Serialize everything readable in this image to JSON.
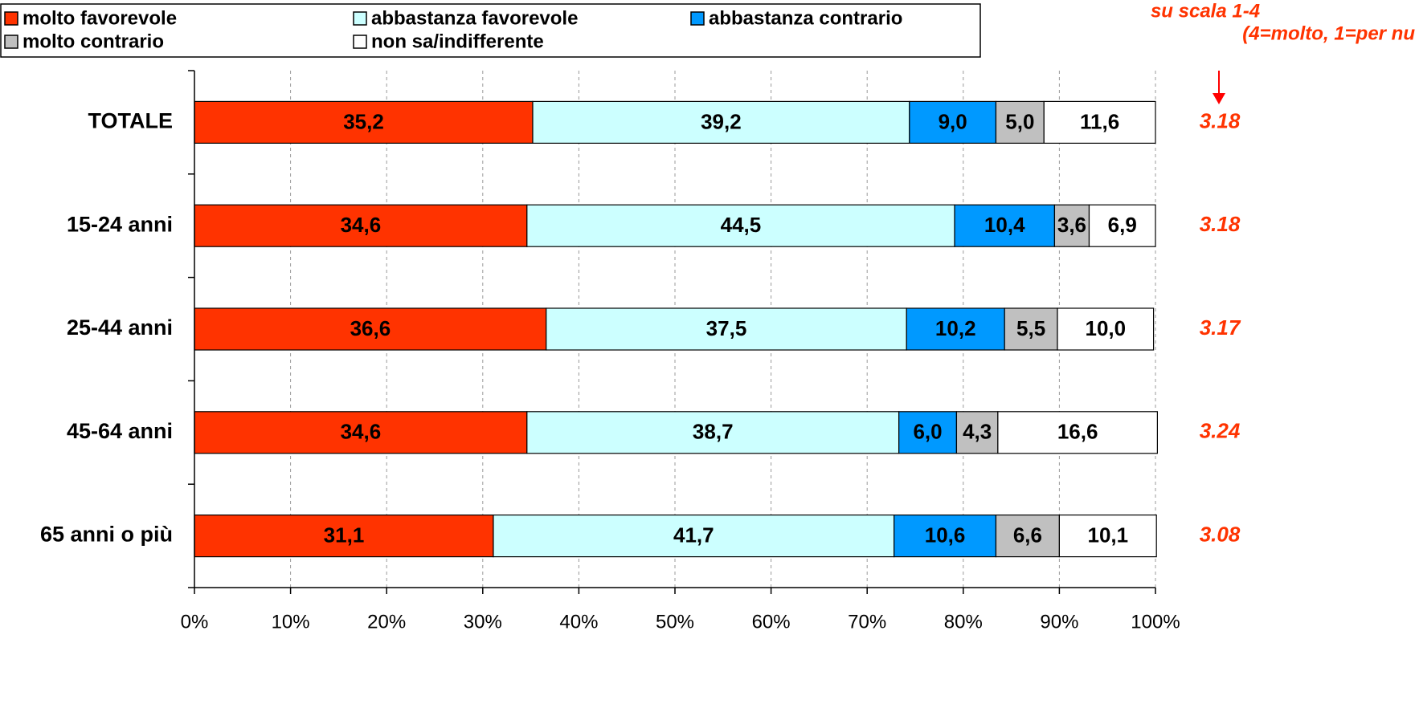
{
  "chart_data": {
    "type": "stacked-barh",
    "categories": [
      "TOTALE",
      "15-24 anni",
      "25-44 anni",
      "45-64 anni",
      "65 anni o più"
    ],
    "series": [
      {
        "name": "molto favorevole",
        "color": "#ff3300",
        "values": [
          35.2,
          34.6,
          36.6,
          34.6,
          31.1
        ],
        "value_labels": [
          "35,2",
          "34,6",
          "36,6",
          "34,6",
          "31,1"
        ]
      },
      {
        "name": "abbastanza favorevole",
        "color": "#ccffff",
        "values": [
          39.2,
          44.5,
          37.5,
          38.7,
          41.7
        ],
        "value_labels": [
          "39,2",
          "44,5",
          "37,5",
          "38,7",
          "41,7"
        ]
      },
      {
        "name": "abbastanza contrario",
        "color": "#0099ff",
        "values": [
          9.0,
          10.4,
          10.2,
          6.0,
          10.6
        ],
        "value_labels": [
          "9,0",
          "10,4",
          "10,2",
          "6,0",
          "10,6"
        ]
      },
      {
        "name": "molto contrario",
        "color": "#c0c0c0",
        "values": [
          5.0,
          3.6,
          5.5,
          4.3,
          6.6
        ],
        "value_labels": [
          "5,0",
          "3,6",
          "5,5",
          "4,3",
          "6,6"
        ]
      },
      {
        "name": "non sa/indifferente",
        "color": "#ffffff",
        "values": [
          11.6,
          6.9,
          10.0,
          16.6,
          10.1
        ],
        "value_labels": [
          "11,6",
          "6,9",
          "10,0",
          "16,6",
          "10,1"
        ]
      }
    ],
    "scores": [
      3.18,
      3.18,
      3.17,
      3.24,
      3.08
    ],
    "annotation": [
      "su scala 1-4",
      "(4=molto, 1=per nu"
    ],
    "xlim": [
      0,
      100
    ],
    "xticks": [
      {
        "value": 0,
        "label": "0%"
      },
      {
        "value": 10,
        "label": "10%"
      },
      {
        "value": 20,
        "label": "20%"
      },
      {
        "value": 30,
        "label": "30%"
      },
      {
        "value": 40,
        "label": "40%"
      },
      {
        "value": 50,
        "label": "50%"
      },
      {
        "value": 60,
        "label": "60%"
      },
      {
        "value": 70,
        "label": "70%"
      },
      {
        "value": 80,
        "label": "80%"
      },
      {
        "value": 90,
        "label": "90%"
      },
      {
        "value": 100,
        "label": "100%"
      }
    ],
    "grid": true
  }
}
